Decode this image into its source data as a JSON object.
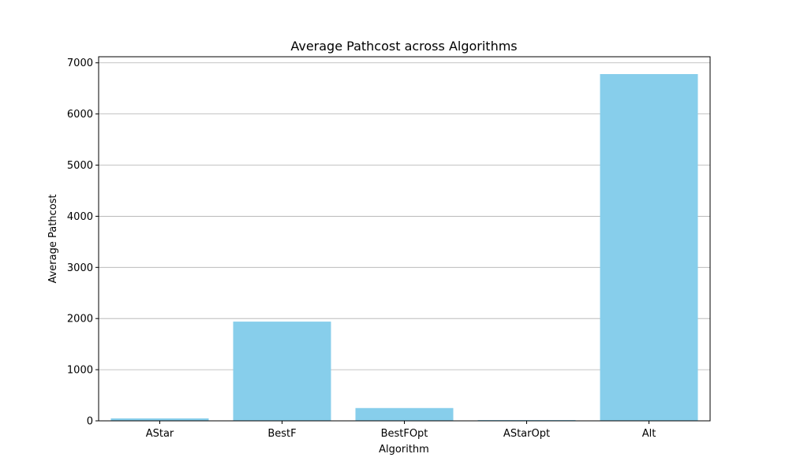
{
  "chart_data": {
    "type": "bar",
    "title": "Average Pathcost across Algorithms",
    "xlabel": "Algorithm",
    "ylabel": "Average Pathcost",
    "categories": [
      "AStar",
      "BestF",
      "BestFOpt",
      "AStarOpt",
      "Alt"
    ],
    "values": [
      48,
      1940,
      250,
      15,
      6780
    ],
    "ylim": [
      0,
      7119
    ],
    "yticks": [
      0,
      1000,
      2000,
      3000,
      4000,
      5000,
      6000,
      7000
    ],
    "grid": "y-major",
    "legend": "none",
    "bar_color": "#87ceeb",
    "grid_color": "#b0b0b0"
  }
}
